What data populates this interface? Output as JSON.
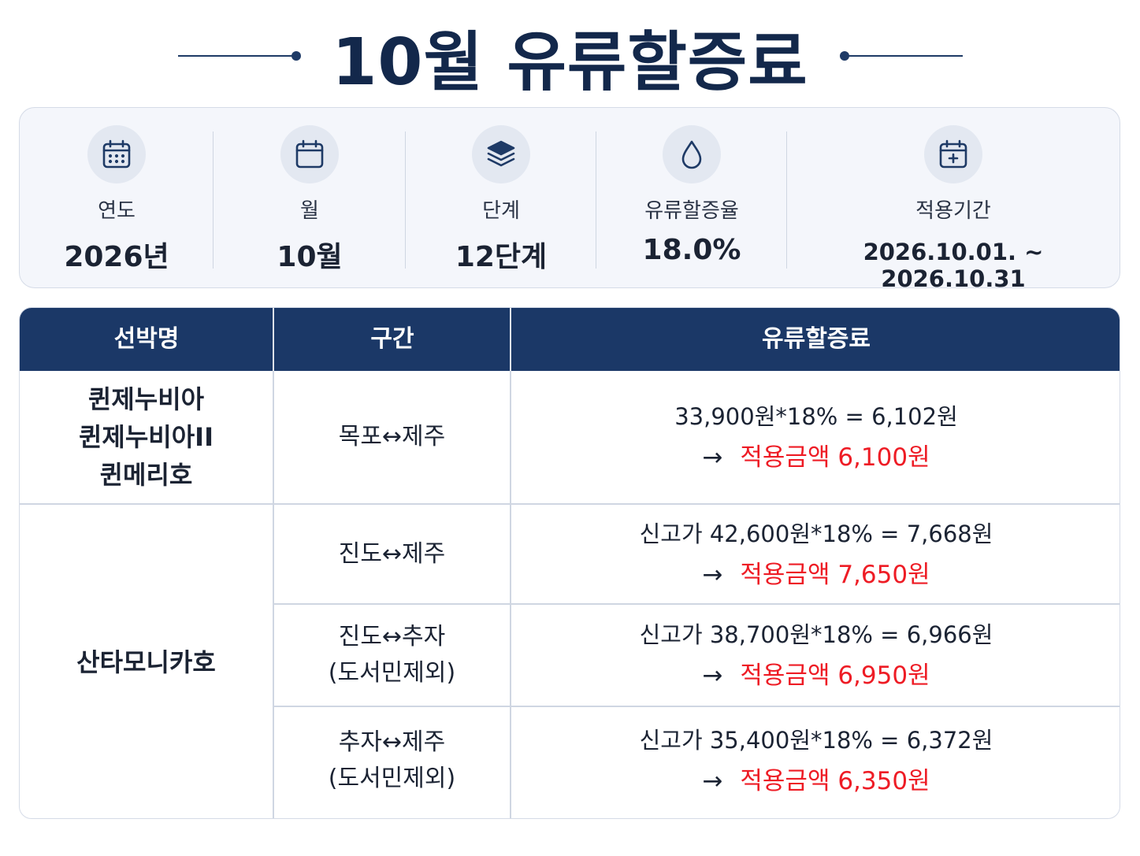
{
  "title": "10월 유류할증료",
  "info": [
    {
      "icon": "calendar-dots-icon",
      "label": "연도",
      "value": "2026년"
    },
    {
      "icon": "calendar-icon",
      "label": "월",
      "value": "10월"
    },
    {
      "icon": "layers-icon",
      "label": "단계",
      "value": "12단계"
    },
    {
      "icon": "droplet-icon",
      "label": "유류할증율",
      "value": "18.0%"
    },
    {
      "icon": "calendar-plus-icon",
      "label": "적용기간",
      "value": "2026.10.01. ~ 2026.10.31"
    }
  ],
  "table": {
    "headers": [
      "선박명",
      "구간",
      "유류할증료"
    ],
    "groups": [
      {
        "ship_lines": [
          "퀸제누비아",
          "퀸제누비아II",
          "퀸메리호"
        ],
        "rows": [
          {
            "route_lines": [
              "목포↔제주"
            ],
            "formula": "33,900원*18% = 6,102원",
            "arrow": "→",
            "applied": "적용금액 6,100원"
          }
        ]
      },
      {
        "ship_lines": [
          "산타모니카호"
        ],
        "rows": [
          {
            "route_lines": [
              "진도↔제주"
            ],
            "formula": "신고가 42,600원*18% = 7,668원",
            "arrow": "→",
            "applied": "적용금액 7,650원"
          },
          {
            "route_lines": [
              "진도↔추자",
              "(도서민제외)"
            ],
            "formula": "신고가 38,700원*18% = 6,966원",
            "arrow": "→",
            "applied": "적용금액 6,950원"
          },
          {
            "route_lines": [
              "추자↔제주",
              "(도서민제외)"
            ],
            "formula": "신고가 35,400원*18% = 6,372원",
            "arrow": "→",
            "applied": "적용금액 6,350원"
          }
        ]
      }
    ]
  },
  "colors": {
    "header_bg": "#1b3867",
    "highlight": "#ee1c25",
    "card_bg": "#f4f6fb"
  }
}
